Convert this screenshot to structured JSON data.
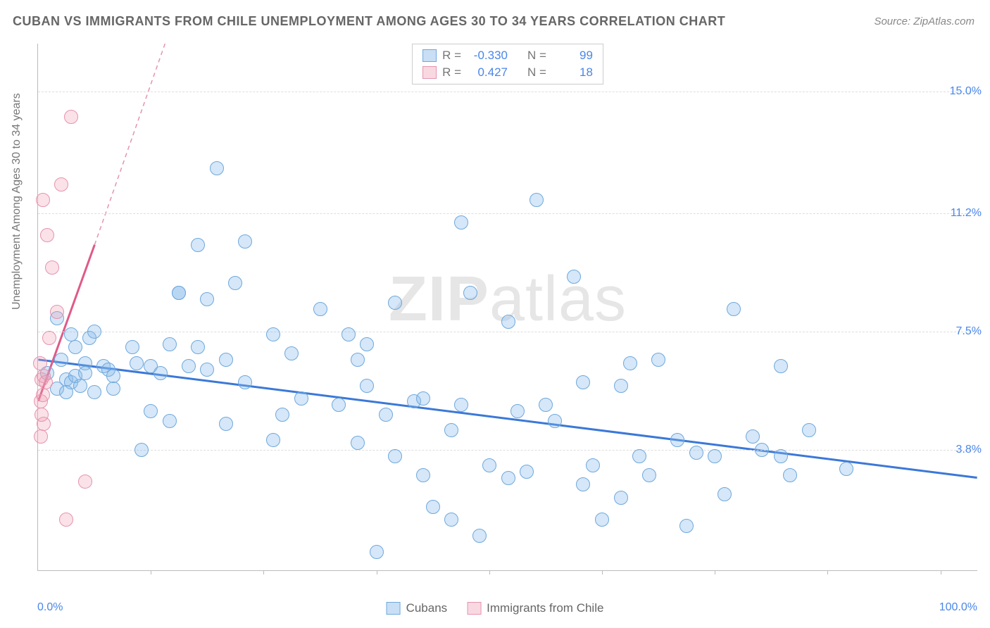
{
  "title": "CUBAN VS IMMIGRANTS FROM CHILE UNEMPLOYMENT AMONG AGES 30 TO 34 YEARS CORRELATION CHART",
  "source": "Source: ZipAtlas.com",
  "ylabel": "Unemployment Among Ages 30 to 34 years",
  "watermark_prefix": "ZIP",
  "watermark_suffix": "atlas",
  "chart": {
    "type": "scatter",
    "xlim": [
      0,
      100
    ],
    "ylim": [
      0,
      16.5
    ],
    "ytick_values": [
      3.8,
      7.5,
      11.2,
      15.0
    ],
    "ytick_labels": [
      "3.8%",
      "7.5%",
      "11.2%",
      "15.0%"
    ],
    "x_start_label": "0.0%",
    "x_end_label": "100.0%",
    "xtick_marks": [
      12,
      24,
      36,
      48,
      60,
      72,
      84,
      96
    ],
    "background_color": "#ffffff",
    "grid_color": "#dddddd",
    "series": [
      {
        "name": "Cubans",
        "color_fill": "rgba(135,185,235,0.35)",
        "color_stroke": "#6fa8dc",
        "marker_size": 20,
        "R": "-0.330",
        "N": "99",
        "trend": {
          "x1": 0,
          "y1": 6.6,
          "x2": 100,
          "y2": 2.9,
          "stroke": "#3b78d8",
          "width": 3
        },
        "points": [
          [
            1,
            6.2
          ],
          [
            2,
            5.7
          ],
          [
            2.5,
            6.6
          ],
          [
            3,
            6.0
          ],
          [
            3.5,
            5.9
          ],
          [
            3,
            5.6
          ],
          [
            4,
            6.1
          ],
          [
            4,
            7.0
          ],
          [
            4.5,
            5.8
          ],
          [
            5,
            6.5
          ],
          [
            5.5,
            7.3
          ],
          [
            5,
            6.2
          ],
          [
            6,
            5.6
          ],
          [
            6,
            7.5
          ],
          [
            7,
            6.4
          ],
          [
            7.5,
            6.3
          ],
          [
            8,
            6.1
          ],
          [
            8,
            5.7
          ],
          [
            2,
            7.9
          ],
          [
            3.5,
            7.4
          ],
          [
            10,
            7.0
          ],
          [
            10.5,
            6.5
          ],
          [
            11,
            3.8
          ],
          [
            12,
            6.4
          ],
          [
            12,
            5.0
          ],
          [
            13,
            6.2
          ],
          [
            14,
            7.1
          ],
          [
            14,
            4.7
          ],
          [
            15,
            8.7
          ],
          [
            15,
            8.7
          ],
          [
            16,
            6.4
          ],
          [
            17,
            7.0
          ],
          [
            17,
            10.2
          ],
          [
            18,
            6.3
          ],
          [
            18,
            8.5
          ],
          [
            19,
            12.6
          ],
          [
            20,
            6.6
          ],
          [
            20,
            4.6
          ],
          [
            21,
            9.0
          ],
          [
            22,
            5.9
          ],
          [
            22,
            10.3
          ],
          [
            25,
            7.4
          ],
          [
            25,
            4.1
          ],
          [
            26,
            4.9
          ],
          [
            27,
            6.8
          ],
          [
            28,
            5.4
          ],
          [
            30,
            8.2
          ],
          [
            32,
            5.2
          ],
          [
            33,
            7.4
          ],
          [
            34,
            4.0
          ],
          [
            34,
            6.6
          ],
          [
            35,
            7.1
          ],
          [
            35,
            5.8
          ],
          [
            36,
            0.6
          ],
          [
            37,
            4.9
          ],
          [
            38,
            3.6
          ],
          [
            38,
            8.4
          ],
          [
            40,
            5.3
          ],
          [
            41,
            3.0
          ],
          [
            41,
            5.4
          ],
          [
            42,
            2.0
          ],
          [
            44,
            4.4
          ],
          [
            44,
            1.6
          ],
          [
            45,
            10.9
          ],
          [
            45,
            5.2
          ],
          [
            46,
            8.7
          ],
          [
            47,
            1.1
          ],
          [
            48,
            3.3
          ],
          [
            50,
            7.8
          ],
          [
            50,
            2.9
          ],
          [
            51,
            5.0
          ],
          [
            52,
            3.1
          ],
          [
            53,
            11.6
          ],
          [
            54,
            5.2
          ],
          [
            55,
            4.7
          ],
          [
            57,
            9.2
          ],
          [
            58,
            2.7
          ],
          [
            58,
            5.9
          ],
          [
            59,
            3.3
          ],
          [
            60,
            1.6
          ],
          [
            62,
            5.8
          ],
          [
            62,
            2.3
          ],
          [
            63,
            6.5
          ],
          [
            64,
            3.6
          ],
          [
            65,
            3.0
          ],
          [
            66,
            6.6
          ],
          [
            68,
            4.1
          ],
          [
            69,
            1.4
          ],
          [
            70,
            3.7
          ],
          [
            72,
            3.6
          ],
          [
            73,
            2.4
          ],
          [
            74,
            8.2
          ],
          [
            76,
            4.2
          ],
          [
            77,
            3.8
          ],
          [
            79,
            6.4
          ],
          [
            79,
            3.6
          ],
          [
            80,
            3.0
          ],
          [
            82,
            4.4
          ],
          [
            86,
            3.2
          ]
        ]
      },
      {
        "name": "Immigrants from Chile",
        "color_fill": "rgba(240,160,180,0.3)",
        "color_stroke": "#e594ae",
        "marker_size": 20,
        "R": "0.427",
        "N": "18",
        "trend_solid": {
          "x1": 0,
          "y1": 5.3,
          "x2": 6,
          "y2": 10.2,
          "stroke": "#e05a87",
          "width": 3
        },
        "trend_dashed": {
          "x1": 6,
          "y1": 10.2,
          "x2": 13.5,
          "y2": 16.5,
          "stroke": "#e594ae",
          "width": 1.5
        },
        "points": [
          [
            0.3,
            5.3
          ],
          [
            0.4,
            6.0
          ],
          [
            0.5,
            5.5
          ],
          [
            0.6,
            6.1
          ],
          [
            0.8,
            5.9
          ],
          [
            0.6,
            4.6
          ],
          [
            0.4,
            4.9
          ],
          [
            0.3,
            4.2
          ],
          [
            0.2,
            6.5
          ],
          [
            0.5,
            11.6
          ],
          [
            1.0,
            10.5
          ],
          [
            1.2,
            7.3
          ],
          [
            1.5,
            9.5
          ],
          [
            2,
            8.1
          ],
          [
            2.5,
            12.1
          ],
          [
            3,
            1.6
          ],
          [
            3.5,
            14.2
          ],
          [
            5,
            2.8
          ]
        ]
      }
    ]
  },
  "legend": {
    "series1": "Cubans",
    "series2": "Immigrants from Chile"
  },
  "stats_labels": {
    "R": "R =",
    "N": "N ="
  }
}
